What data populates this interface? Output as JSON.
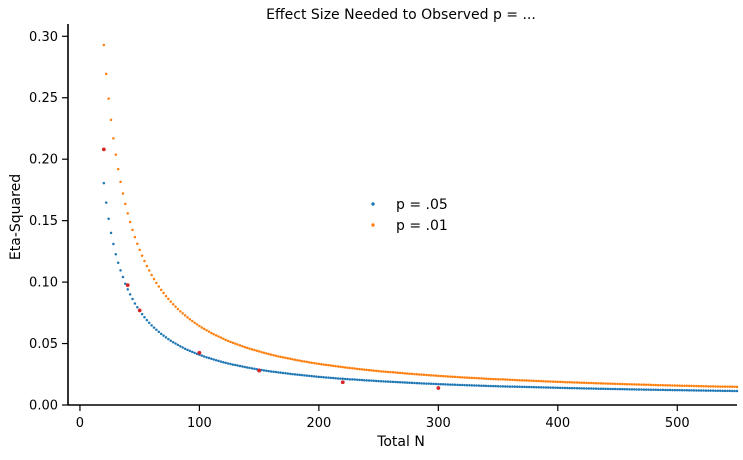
{
  "chart_data": {
    "type": "scatter",
    "title": "Effect Size Needed to Observed p = ...",
    "xlabel": "Total N",
    "ylabel": "Eta-Squared",
    "xlim": [
      -10,
      550
    ],
    "ylim": [
      0,
      0.31
    ],
    "x_ticks": [
      0,
      100,
      200,
      300,
      400,
      500
    ],
    "x_tick_labels": [
      "0",
      "100",
      "200",
      "300",
      "400",
      "500"
    ],
    "y_ticks": [
      0.0,
      0.05,
      0.1,
      0.15,
      0.2,
      0.25,
      0.3
    ],
    "y_tick_labels": [
      "0.00",
      "0.05",
      "0.10",
      "0.15",
      "0.20",
      "0.25",
      "0.30"
    ],
    "grid": false,
    "legend_position": "center",
    "series": [
      {
        "name": "p = .05",
        "color": "#1f77b4",
        "x_range": [
          20,
          550
        ],
        "x_step": 2,
        "y": [
          0.1805,
          0.1647,
          0.1515,
          0.14,
          0.131,
          0.1227,
          0.1157,
          0.1095,
          0.1041,
          0.0987,
          0.0941,
          0.09,
          0.0862,
          0.0826,
          0.0795,
          0.0765,
          0.0739,
          0.0714,
          0.0691,
          0.0669,
          0.0648,
          0.063,
          0.0612,
          0.0595,
          0.0579,
          0.0564,
          0.055,
          0.0536,
          0.0523,
          0.0511,
          0.05,
          0.0489,
          0.0478,
          0.0468,
          0.0458,
          0.0449,
          0.044,
          0.0432,
          0.0424,
          0.0416,
          0.0409,
          0.0402,
          0.0395,
          0.0388,
          0.0382,
          0.0376,
          0.037,
          0.0364,
          0.0359,
          0.0353,
          0.0348,
          0.0343,
          0.0338,
          0.0334,
          0.0329,
          0.0325,
          0.0321,
          0.0317,
          0.0313,
          0.0309,
          0.0305,
          0.0302,
          0.0298,
          0.0295,
          0.0291,
          0.0288,
          0.0285,
          0.0282,
          0.0279,
          0.0276,
          0.0273,
          0.0271,
          0.0268,
          0.0265,
          0.0263,
          0.026,
          0.0258,
          0.0256,
          0.0253,
          0.0251,
          0.0249,
          0.0247,
          0.0245,
          0.0243,
          0.0241,
          0.0239,
          0.0237,
          0.0235,
          0.0233,
          0.0231,
          0.0229,
          0.0228,
          0.0226,
          0.0224,
          0.0223,
          0.0221,
          0.022,
          0.0218,
          0.0216,
          0.0215,
          0.0214,
          0.0212,
          0.0211,
          0.0209,
          0.0208,
          0.0207,
          0.0205,
          0.0204,
          0.0203,
          0.0201,
          0.02,
          0.0199,
          0.0198,
          0.0197,
          0.0195,
          0.0194,
          0.0193,
          0.0192,
          0.0191,
          0.019,
          0.0189,
          0.0188,
          0.0187,
          0.0186,
          0.0185,
          0.0184,
          0.0183,
          0.0182,
          0.0181,
          0.018,
          0.0179,
          0.0178,
          0.0177,
          0.0176,
          0.0175,
          0.0174,
          0.0174,
          0.0173,
          0.0172,
          0.0171,
          0.017,
          0.0169,
          0.0169,
          0.0168,
          0.0167,
          0.0166,
          0.0166,
          0.0165,
          0.0164,
          0.0163,
          0.0163,
          0.0162,
          0.0161,
          0.0161,
          0.016,
          0.0159,
          0.0159,
          0.0158,
          0.0157,
          0.0157,
          0.0156,
          0.0155,
          0.0155,
          0.0154,
          0.0154,
          0.0153,
          0.0152,
          0.0152,
          0.0151,
          0.0151,
          0.015,
          0.015,
          0.0149,
          0.0148,
          0.0148,
          0.0147,
          0.0147,
          0.0146,
          0.0146,
          0.0145,
          0.0145,
          0.0144,
          0.0144,
          0.0143,
          0.0143,
          0.0142,
          0.0142,
          0.0141,
          0.0141,
          0.014,
          0.014,
          0.0139,
          0.0139,
          0.0138,
          0.0138,
          0.0137,
          0.0137,
          0.0137,
          0.0136,
          0.0136,
          0.0135,
          0.0135,
          0.0134,
          0.0134,
          0.0134,
          0.0133,
          0.0133,
          0.0132,
          0.0132,
          0.0132,
          0.0131,
          0.0131,
          0.013,
          0.013,
          0.013,
          0.0129,
          0.0129,
          0.0129,
          0.0128,
          0.0128,
          0.0127,
          0.0127,
          0.0127,
          0.0126,
          0.0126,
          0.0126,
          0.0125,
          0.0125,
          0.0125,
          0.0124,
          0.0124,
          0.0124,
          0.0123,
          0.0123,
          0.0123,
          0.0122,
          0.0122,
          0.0122,
          0.0121,
          0.0121,
          0.0121,
          0.0121,
          0.012,
          0.012,
          0.012,
          0.0119,
          0.0119,
          0.0119,
          0.0118,
          0.0118,
          0.0118,
          0.0118,
          0.0117,
          0.0117,
          0.0117,
          0.0117,
          0.0116,
          0.0116,
          0.0116,
          0.0115,
          0.0115,
          0.0115,
          0.0115,
          0.0114,
          0.0114,
          0.0114,
          0.0114,
          0.0113,
          0.0113,
          0.0113,
          0.0113,
          0.0112,
          0.0112,
          0.0112,
          0.0112,
          0.0111,
          0.0111,
          0.0111,
          0.0111,
          0.0111,
          0.011,
          0.011
        ]
      },
      {
        "name": "p = .01",
        "color": "#ff7f0e",
        "x_range": [
          20,
          550
        ],
        "x_step": 2,
        "y": [
          0.2929,
          0.2694,
          0.2493,
          0.232,
          0.2169,
          0.2037,
          0.1919,
          0.1815,
          0.1721,
          0.1636,
          0.1559,
          0.1489,
          0.1425,
          0.1366,
          0.1312,
          0.1262,
          0.1215,
          0.1172,
          0.1131,
          0.1094,
          0.1058,
          0.1025,
          0.0994,
          0.0964,
          0.0937,
          0.0911,
          0.0886,
          0.0863,
          0.0841,
          0.082,
          0.08,
          0.0781,
          0.0762,
          0.0745,
          0.0729,
          0.0713,
          0.0698,
          0.0683,
          0.0669,
          0.0656,
          0.0643,
          0.0631,
          0.0619,
          0.0608,
          0.0597,
          0.0586,
          0.0576,
          0.0566,
          0.0557,
          0.0548,
          0.0539,
          0.053,
          0.0522,
          0.0514,
          0.0506,
          0.0499,
          0.0492,
          0.0485,
          0.0478,
          0.0471,
          0.0465,
          0.0459,
          0.0453,
          0.0447,
          0.0441,
          0.0436,
          0.043,
          0.0425,
          0.042,
          0.0415,
          0.041,
          0.0405,
          0.0401,
          0.0396,
          0.0392,
          0.0388,
          0.0384,
          0.038,
          0.0376,
          0.0372,
          0.0368,
          0.0364,
          0.0361,
          0.0357,
          0.0354,
          0.0351,
          0.0347,
          0.0344,
          0.0341,
          0.0338,
          0.0335,
          0.0332,
          0.0329,
          0.0326,
          0.0324,
          0.0321,
          0.0318,
          0.0316,
          0.0313,
          0.0311,
          0.0308,
          0.0306,
          0.0303,
          0.0301,
          0.0299,
          0.0297,
          0.0294,
          0.0292,
          0.029,
          0.0288,
          0.0286,
          0.0284,
          0.0282,
          0.028,
          0.0278,
          0.0276,
          0.0274,
          0.0273,
          0.0271,
          0.0269,
          0.0267,
          0.0266,
          0.0264,
          0.0262,
          0.0261,
          0.0259,
          0.0257,
          0.0256,
          0.0254,
          0.0253,
          0.0251,
          0.025,
          0.0248,
          0.0247,
          0.0246,
          0.0244,
          0.0243,
          0.0241,
          0.024,
          0.0239,
          0.0237,
          0.0236,
          0.0235,
          0.0234,
          0.0232,
          0.0231,
          0.023,
          0.0229,
          0.0228,
          0.0226,
          0.0225,
          0.0224,
          0.0223,
          0.0222,
          0.0221,
          0.022,
          0.0219,
          0.0218,
          0.0217,
          0.0216,
          0.0214,
          0.0213,
          0.0212,
          0.0211,
          0.0211,
          0.021,
          0.0209,
          0.0208,
          0.0207,
          0.0206,
          0.0205,
          0.0204,
          0.0203,
          0.0202,
          0.0201,
          0.02,
          0.02,
          0.0199,
          0.0198,
          0.0197,
          0.0196,
          0.0195,
          0.0195,
          0.0194,
          0.0193,
          0.0192,
          0.0191,
          0.0191,
          0.019,
          0.0189,
          0.0188,
          0.0188,
          0.0187,
          0.0186,
          0.0185,
          0.0185,
          0.0184,
          0.0183,
          0.0183,
          0.0182,
          0.0181,
          0.0181,
          0.018,
          0.0179,
          0.0179,
          0.0178,
          0.0177,
          0.0177,
          0.0176,
          0.0175,
          0.0175,
          0.0174,
          0.0174,
          0.0173,
          0.0172,
          0.0172,
          0.0171,
          0.0171,
          0.017,
          0.0169,
          0.0169,
          0.0168,
          0.0168,
          0.0167,
          0.0167,
          0.0166,
          0.0166,
          0.0165,
          0.0165,
          0.0164,
          0.0163,
          0.0163,
          0.0162,
          0.0162,
          0.0161,
          0.0161,
          0.016,
          0.016,
          0.0159,
          0.0159,
          0.0158,
          0.0158,
          0.0157,
          0.0157,
          0.0157,
          0.0156,
          0.0156,
          0.0155,
          0.0155,
          0.0154,
          0.0154,
          0.0153,
          0.0153,
          0.0152,
          0.0152,
          0.0152,
          0.0151,
          0.0151,
          0.015,
          0.015,
          0.0149,
          0.0149,
          0.0149,
          0.0148,
          0.0148,
          0.0147,
          0.0147,
          0.0147,
          0.0146,
          0.0146,
          0.0145,
          0.0145,
          0.0145,
          0.0144,
          0.0144,
          0.0144,
          0.0143
        ]
      }
    ],
    "highlight_points": {
      "color": "#d62728",
      "points": [
        {
          "x": 20,
          "y": 0.208
        },
        {
          "x": 40,
          "y": 0.0975
        },
        {
          "x": 50,
          "y": 0.077
        },
        {
          "x": 100,
          "y": 0.0425
        },
        {
          "x": 150,
          "y": 0.028
        },
        {
          "x": 220,
          "y": 0.0185
        },
        {
          "x": 300,
          "y": 0.0138
        }
      ]
    }
  }
}
